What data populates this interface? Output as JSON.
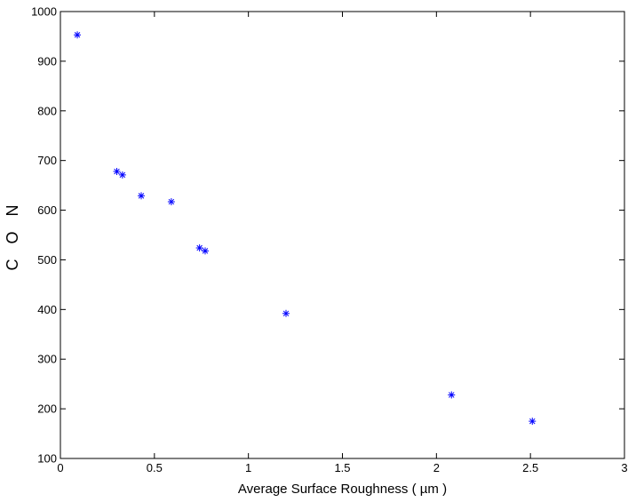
{
  "chart_data": {
    "type": "scatter",
    "title": "",
    "xlabel": "Average Surface Roughness ( µm )",
    "ylabel": "C O N",
    "xlim": [
      0,
      3
    ],
    "ylim": [
      100,
      1000
    ],
    "xticks": [
      0,
      0.5,
      1,
      1.5,
      2,
      2.5,
      3
    ],
    "xtick_labels": [
      "0",
      "0.5",
      "1",
      "1.5",
      "2",
      "2.5",
      "3"
    ],
    "yticks": [
      100,
      200,
      300,
      400,
      500,
      600,
      700,
      800,
      900,
      1000
    ],
    "ytick_labels": [
      "100",
      "200",
      "300",
      "400",
      "500",
      "600",
      "700",
      "800",
      "900",
      "1000"
    ],
    "grid": false,
    "marker": "*",
    "marker_color": "#0000ff",
    "points": [
      {
        "x": 0.09,
        "y": 953
      },
      {
        "x": 0.3,
        "y": 678
      },
      {
        "x": 0.33,
        "y": 671
      },
      {
        "x": 0.43,
        "y": 629
      },
      {
        "x": 0.59,
        "y": 617
      },
      {
        "x": 0.74,
        "y": 524
      },
      {
        "x": 0.77,
        "y": 518
      },
      {
        "x": 1.2,
        "y": 392
      },
      {
        "x": 2.08,
        "y": 228
      },
      {
        "x": 2.51,
        "y": 175
      }
    ]
  }
}
